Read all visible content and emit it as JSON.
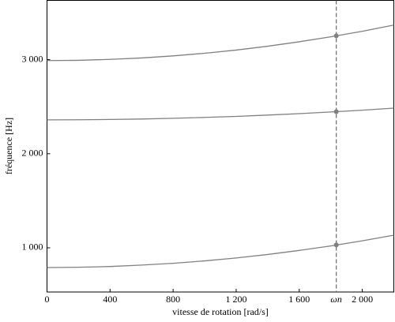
{
  "chart_data": {
    "type": "line",
    "x": [
      0,
      200,
      400,
      600,
      800,
      1000,
      1200,
      1400,
      1600,
      1800,
      2000,
      2200
    ],
    "series": [
      {
        "color": "#808080",
        "values": [
          790,
          793,
          801,
          816,
          835,
          861,
          892,
          929,
          972,
          1020,
          1074,
          1134
        ],
        "marker": 1030
      },
      {
        "color": "#808080",
        "values": [
          2360,
          2361,
          2364,
          2369,
          2377,
          2386,
          2397,
          2411,
          2426,
          2444,
          2463,
          2485
        ],
        "marker": 2447
      },
      {
        "color": "#808080",
        "values": [
          2990,
          2993,
          3003,
          3018,
          3040,
          3068,
          3102,
          3143,
          3190,
          3243,
          3302,
          3368
        ],
        "marker": 3253
      }
    ],
    "vline": {
      "value": 1835,
      "label": "ωn"
    },
    "xlim": [
      0,
      2200
    ],
    "ylim": [
      530,
      3630
    ],
    "xticks": [
      0,
      400,
      800,
      {
        "value": 1200,
        "label": "1 200"
      },
      {
        "value": 1600,
        "label": "1 600"
      },
      {
        "value": 2000,
        "label": "2 000"
      }
    ],
    "yticks": [
      {
        "value": 1000,
        "label": "1 000"
      },
      {
        "value": 2000,
        "label": "2 000"
      },
      {
        "value": 3000,
        "label": "3 000"
      }
    ],
    "xlabel": "vitesse de rotation [rad/s]",
    "ylabel": "fréquence [Hz]"
  }
}
